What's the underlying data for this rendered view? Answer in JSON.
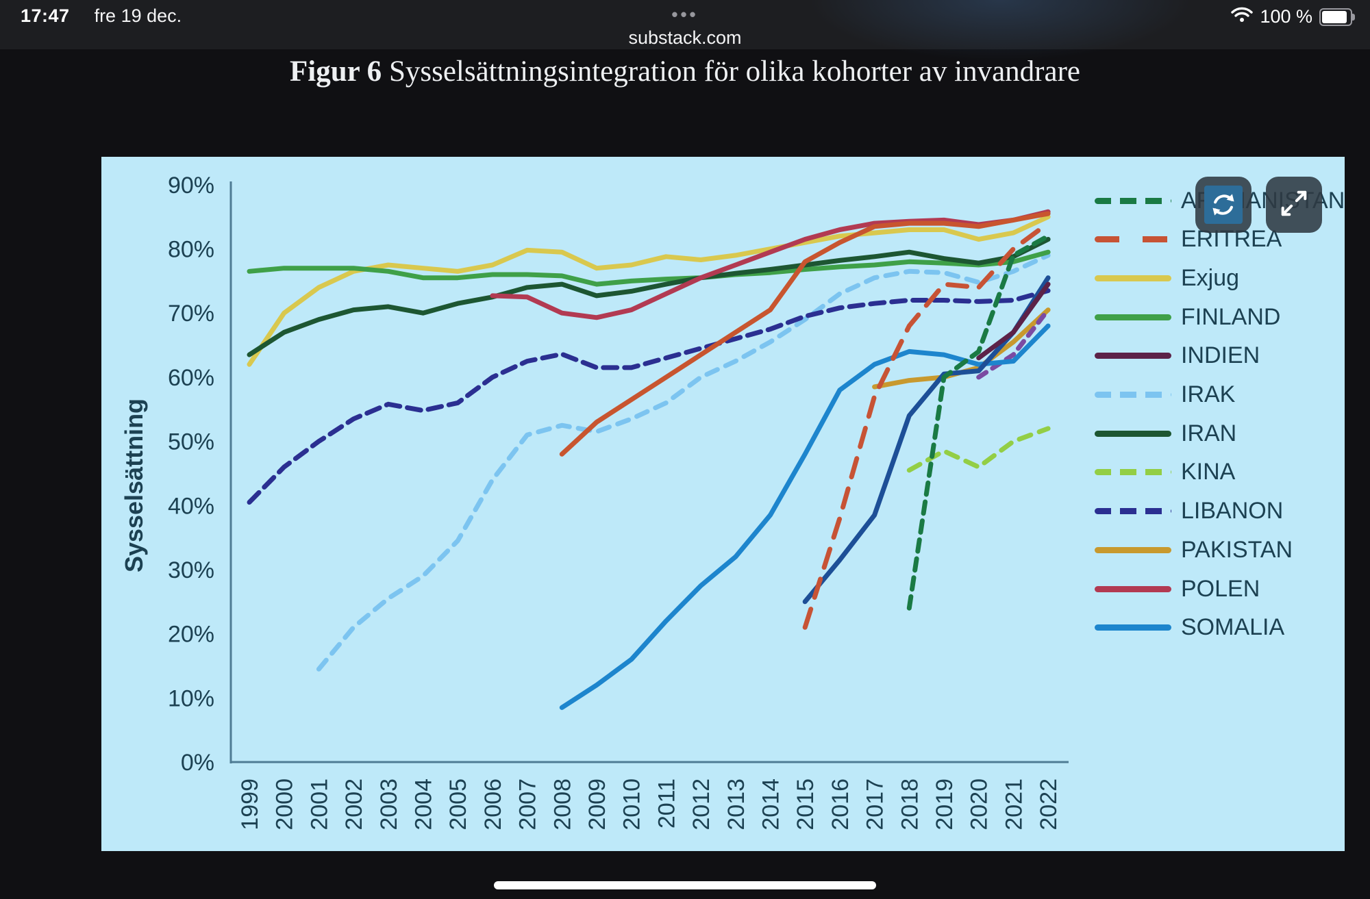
{
  "status_bar": {
    "time": "17:47",
    "date": "fre 19 dec.",
    "battery_percent": "100 %",
    "tab_dots": "•••",
    "url": "substack.com",
    "icons": [
      "wifi-icon",
      "battery-icon"
    ]
  },
  "figure_title": {
    "prefix": "Figur 6",
    "text": " Sysselsättningsintegration för olika kohorter av invandrare"
  },
  "chart_ui": {
    "background": "#bee9f9",
    "axis_line_color": "#4f7c94",
    "text_color": "#1c4152",
    "buttons": [
      "refresh-button",
      "expand-button"
    ]
  },
  "chart_data": {
    "type": "line",
    "title": "Figur 6 Sysselsättningsintegration för olika kohorter av invandrare",
    "xlabel": "",
    "ylabel": "Sysselsättning",
    "x_range": [
      1999,
      2022
    ],
    "ylim": [
      0,
      90
    ],
    "grid": false,
    "legend_position": "right",
    "y_ticks": [
      "0%",
      "10%",
      "20%",
      "30%",
      "40%",
      "50%",
      "60%",
      "70%",
      "80%",
      "90%"
    ],
    "x_ticks": [
      "1999",
      "2000",
      "2001",
      "2002",
      "2003",
      "2004",
      "2005",
      "2006",
      "2007",
      "2008",
      "2009",
      "2010",
      "2011",
      "2012",
      "2013",
      "2014",
      "2015",
      "2016",
      "2017",
      "2018",
      "2019",
      "2020",
      "2021",
      "2022"
    ],
    "legend": [
      {
        "label": "AFGHANISTAN",
        "color": "#1a7a44",
        "style": "dashed"
      },
      {
        "label": "ERITREA",
        "color": "#c75335",
        "style": "dashed-long"
      },
      {
        "label": "Exjug",
        "color": "#d9c84e",
        "style": "solid"
      },
      {
        "label": "FINLAND",
        "color": "#3fa048",
        "style": "solid"
      },
      {
        "label": "INDIEN",
        "color": "#5c2248",
        "style": "solid"
      },
      {
        "label": "IRAK",
        "color": "#7cc4f0",
        "style": "dashed"
      },
      {
        "label": "IRAN",
        "color": "#1d5632",
        "style": "solid"
      },
      {
        "label": "KINA",
        "color": "#93ce45",
        "style": "dashed"
      },
      {
        "label": "LIBANON",
        "color": "#2b2f91",
        "style": "dashed"
      },
      {
        "label": "PAKISTAN",
        "color": "#c8992e",
        "style": "solid"
      },
      {
        "label": "POLEN",
        "color": "#b23a52",
        "style": "solid"
      },
      {
        "label": "SOMALIA",
        "color": "#1d85cd",
        "style": "solid"
      }
    ],
    "series": [
      {
        "name": "IRAK",
        "legend_label": "IRAK",
        "color": "#7cc4f0",
        "dash": [
          17,
          13
        ],
        "start": 2001,
        "values": [
          14.5,
          21,
          25.5,
          29,
          34.5,
          44,
          51,
          52.5,
          51.5,
          53.5,
          56,
          60,
          62.5,
          65.5,
          69,
          73,
          75.5,
          76.5,
          76.3,
          74.8,
          76.5,
          79
        ]
      },
      {
        "name": "LIBANON",
        "legend_label": "LIBANON",
        "color": "#2b2f91",
        "dash": [
          20,
          11
        ],
        "start": 1999,
        "values": [
          40.5,
          46,
          50,
          53.5,
          55.8,
          54.8,
          56,
          60,
          62.5,
          63.6,
          61.5,
          61.5,
          63,
          64.5,
          66,
          67.5,
          69.5,
          70.8,
          71.5,
          72,
          72,
          71.8,
          72,
          73.5
        ]
      },
      {
        "name": "Exjug",
        "legend_label": "Exjug",
        "color": "#d9c84e",
        "dash": null,
        "start": 1999,
        "values": [
          62,
          70,
          74,
          76.5,
          77.5,
          77,
          76.5,
          77.5,
          79.8,
          79.5,
          77,
          77.5,
          78.8,
          78.3,
          79,
          80,
          81,
          82,
          82.5,
          83,
          83,
          81.5,
          82.5,
          85
        ]
      },
      {
        "name": "FINLAND",
        "legend_label": "FINLAND",
        "color": "#3fa048",
        "dash": null,
        "start": 1999,
        "values": [
          76.5,
          77,
          77,
          77,
          76.5,
          75.5,
          75.5,
          76,
          76,
          75.8,
          74.5,
          75,
          75.3,
          75.5,
          76,
          76.3,
          76.8,
          77.2,
          77.5,
          78,
          77.8,
          77.5,
          78,
          79.5
        ]
      },
      {
        "name": "IRAN",
        "legend_label": "IRAN",
        "color": "#1d5632",
        "dash": null,
        "start": 1999,
        "values": [
          63.5,
          67,
          69,
          70.5,
          71,
          70,
          71.5,
          72.5,
          74,
          74.5,
          72.7,
          73.4,
          74.5,
          75.5,
          76.2,
          76.8,
          77.5,
          78.2,
          78.8,
          79.5,
          78.5,
          77.8,
          78.8,
          81.5
        ]
      },
      {
        "name": "POLEN",
        "legend_label": "POLEN",
        "color": "#b23a52",
        "dash": null,
        "start": 2006,
        "values": [
          72.7,
          72.5,
          70,
          69.3,
          70.5,
          73,
          75.5,
          77.5,
          79.5,
          81.5,
          83,
          84,
          84.3,
          84.5,
          83.8,
          84.5,
          85.8
        ]
      },
      {
        "name": "orange-solid-cohort",
        "legend_label": "ERITREA",
        "color": "#c8552f",
        "dash": null,
        "start": 2008,
        "values": [
          48,
          53,
          56.5,
          60,
          63.5,
          67,
          70.5,
          78,
          81,
          83.5,
          84,
          84,
          83.5,
          84.5,
          85.5
        ]
      },
      {
        "name": "PAKISTAN",
        "legend_label": "PAKISTAN",
        "color": "#c8992e",
        "dash": null,
        "start": 2017,
        "values": [
          58.5,
          59.5,
          60,
          61.5,
          65.5,
          70.5
        ]
      },
      {
        "name": "KINA",
        "legend_label": "KINA",
        "color": "#93ce45",
        "dash": [
          18,
          13
        ],
        "start": 2018,
        "values": [
          45.5,
          48.5,
          46,
          50,
          52
        ]
      },
      {
        "name": "violet-dashed-cohort",
        "legend_label": null,
        "color": "#7b4ba2",
        "dash": [
          13,
          11
        ],
        "start": 2020,
        "values": [
          60,
          63.5,
          70.5
        ]
      },
      {
        "name": "SOMALIA",
        "legend_label": "SOMALIA",
        "color": "#1d85cd",
        "dash": null,
        "start": 2008,
        "values": [
          8.5,
          12,
          16,
          22,
          27.5,
          32,
          38.5,
          48,
          58,
          62,
          64,
          63.5,
          62,
          62.5,
          68
        ]
      },
      {
        "name": "darkblue-solid-cohort",
        "legend_label": null,
        "color": "#1d4f97",
        "dash": null,
        "start": 2015,
        "values": [
          25,
          31.5,
          38.5,
          54,
          60.5,
          61,
          67,
          75.5
        ]
      },
      {
        "name": "INDIEN",
        "legend_label": "INDIEN",
        "color": "#5c2248",
        "dash": null,
        "start": 2020,
        "values": [
          63,
          67,
          74.5
        ]
      },
      {
        "name": "ERITREA",
        "legend_label": "ERITREA",
        "color": "#c75335",
        "dash": [
          28,
          18
        ],
        "start": 2015,
        "values": [
          21,
          38,
          57,
          68,
          74.5,
          74,
          80,
          84
        ]
      },
      {
        "name": "AFGHANISTAN",
        "legend_label": "AFGHANISTAN",
        "color": "#1a7a44",
        "dash": [
          17,
          11
        ],
        "start": 2018,
        "values": [
          24,
          60,
          64,
          79,
          82
        ]
      }
    ]
  }
}
